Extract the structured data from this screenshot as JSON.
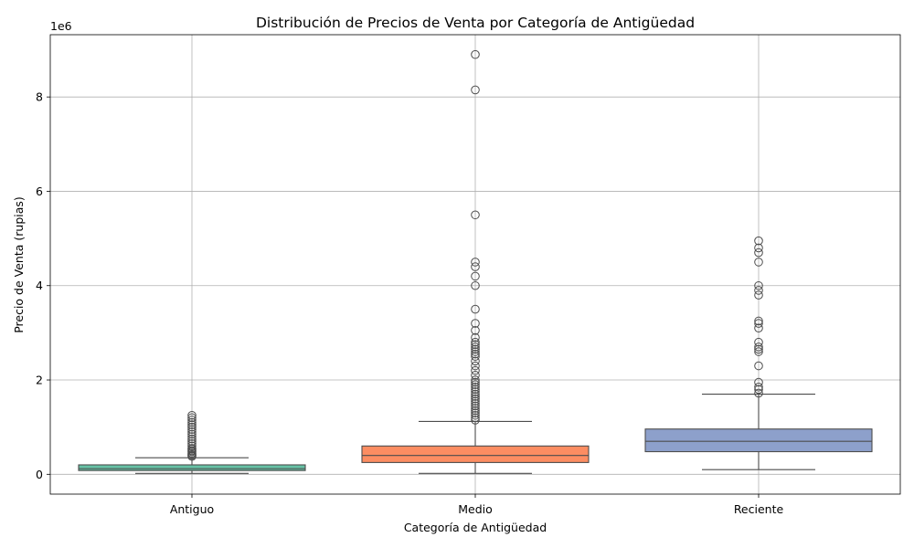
{
  "chart_data": {
    "type": "box",
    "title": "Distribución de Precios de Venta por Categoría de Antigüedad",
    "xlabel": "Categoría de Antigüedad",
    "ylabel": "Precio de Venta (rupias)",
    "y_offset_label": "1e6",
    "y_scale_factor": 1000000,
    "ylim": [
      -420000,
      9320000
    ],
    "yticks": [
      0,
      2000000,
      4000000,
      6000000,
      8000000
    ],
    "ytick_labels": [
      "0",
      "2",
      "4",
      "6",
      "8"
    ],
    "grid": true,
    "categories": [
      "Antiguo",
      "Medio",
      "Reciente"
    ],
    "boxes": [
      {
        "category": "Antiguo",
        "color": "#66c2a5",
        "whisker_low": 20000,
        "q1": 80000,
        "median": 120000,
        "q3": 200000,
        "whisker_high": 350000,
        "outliers": [
          380000,
          400000,
          420000,
          450000,
          480000,
          500000,
          530000,
          550000,
          600000,
          650000,
          700000,
          750000,
          800000,
          850000,
          900000,
          950000,
          1000000,
          1050000,
          1100000,
          1150000,
          1200000,
          1250000
        ]
      },
      {
        "category": "Medio",
        "color": "#fc8d62",
        "whisker_low": 20000,
        "q1": 250000,
        "median": 400000,
        "q3": 600000,
        "whisker_high": 1120000,
        "outliers": [
          1150000,
          1200000,
          1250000,
          1300000,
          1350000,
          1400000,
          1450000,
          1500000,
          1550000,
          1600000,
          1650000,
          1700000,
          1750000,
          1800000,
          1850000,
          1900000,
          1950000,
          2000000,
          2100000,
          2200000,
          2300000,
          2400000,
          2500000,
          2550000,
          2600000,
          2650000,
          2700000,
          2750000,
          2800000,
          2900000,
          3050000,
          3200000,
          3500000,
          4000000,
          4200000,
          4400000,
          4500000,
          5500000,
          8150000,
          8900000
        ]
      },
      {
        "category": "Reciente",
        "color": "#8da0cb",
        "whisker_low": 100000,
        "q1": 480000,
        "median": 700000,
        "q3": 960000,
        "whisker_high": 1700000,
        "outliers": [
          1720000,
          1800000,
          1850000,
          1950000,
          2300000,
          2600000,
          2650000,
          2700000,
          2800000,
          3100000,
          3200000,
          3250000,
          3800000,
          3900000,
          4000000,
          4500000,
          4700000,
          4800000,
          4950000
        ]
      }
    ]
  }
}
